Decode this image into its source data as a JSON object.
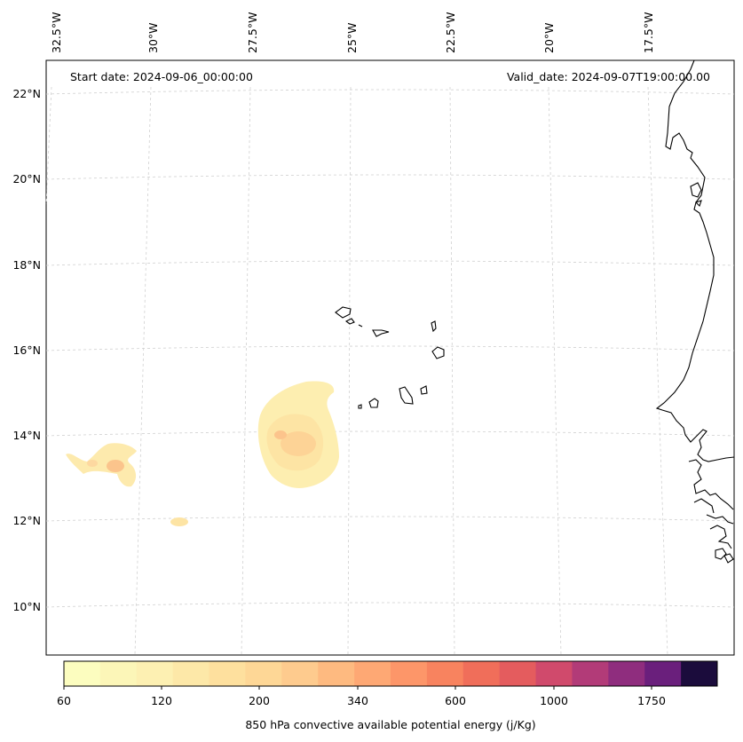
{
  "map": {
    "start_date": "Start date: 2024-09-06_00:00:00",
    "valid_date": "Valid_date: 2024-09-07T19:00:00.00",
    "lon_labels": [
      "32.5°W",
      "30°W",
      "27.5°W",
      "25°W",
      "22.5°W",
      "20°W",
      "17.5°W"
    ],
    "lat_labels": [
      "22°N",
      "20°N",
      "18°N",
      "16°N",
      "14°N",
      "12°N",
      "10°N"
    ],
    "gridline_color": "#d0d0d0",
    "coastline_color": "#000000"
  },
  "colorbar": {
    "title": "850 hPa convective available potential energy (j/Kg)",
    "tick_labels": [
      "60",
      "120",
      "200",
      "340",
      "600",
      "1000",
      "1750"
    ],
    "colors": [
      "#fcfdbf",
      "#fcf6b8",
      "#fdf0b2",
      "#fde8a8",
      "#fee09e",
      "#fed796",
      "#fecb8e",
      "#feba80",
      "#fea874",
      "#fd9669",
      "#f8835f",
      "#f06e5a",
      "#e45c5e",
      "#d04a6c",
      "#b23b78",
      "#8f2d7e",
      "#6a1f7c",
      "#1b0c3c"
    ]
  }
}
